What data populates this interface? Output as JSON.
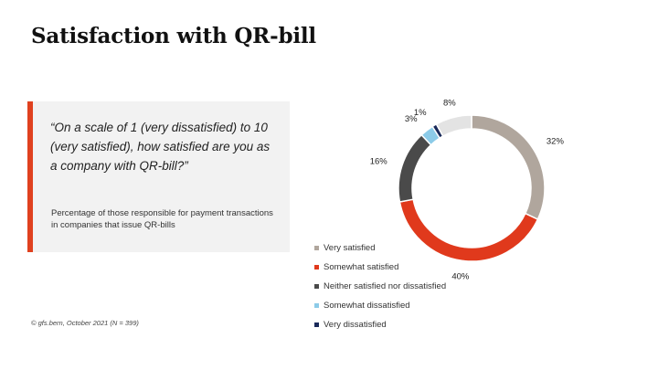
{
  "title": "Satisfaction with QR-bill",
  "quote": "“On a scale of 1 (very dissatisfied) to 10 (very satisfied), how satisfied are you as a company with QR-bill?”",
  "subtitle": "Percentage of those responsible for payment transactions in companies that issue QR-bills",
  "footnote": "© gfs.bern, October 2021 (N = 399)",
  "colors": {
    "accent": "#e0411f",
    "box_bg": "#f2f2f2"
  },
  "chart_data": {
    "type": "pie",
    "donut": true,
    "categories": [
      "Very satisfied",
      "Somewhat satisfied",
      "Neither satisfied nor dissatisfied",
      "Somewhat dissatisfied",
      "Very dissatisfied",
      ""
    ],
    "values": [
      32,
      40,
      16,
      3,
      1,
      8
    ],
    "labels": [
      "32%",
      "40%",
      "16%",
      "3%",
      "1%",
      "8%"
    ],
    "colors": [
      "#b0a69d",
      "#e0391c",
      "#4a4a4a",
      "#8ccbe8",
      "#1a2a5a",
      "#e3e3e3"
    ],
    "legend": {
      "placement": "bottom-left",
      "entries": [
        "Very satisfied",
        "Somewhat satisfied",
        "Neither satisfied nor dissatisfied",
        "Somewhat dissatisfied",
        "Very dissatisfied"
      ]
    }
  }
}
